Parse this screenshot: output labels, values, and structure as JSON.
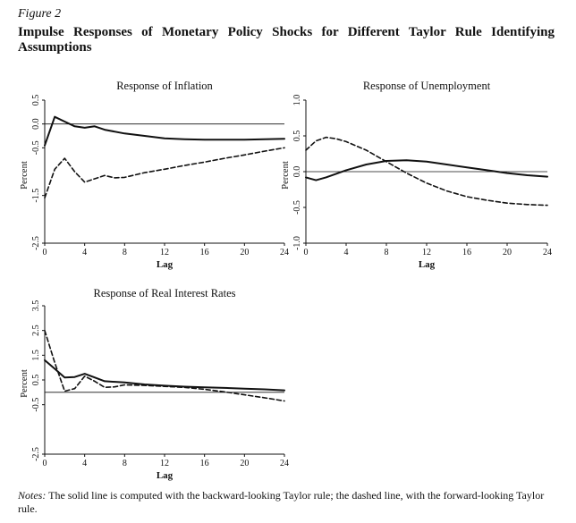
{
  "figure": {
    "label": "Figure 2",
    "title": "Impulse Responses of Monetary Policy Shocks for Different Taylor Rule Identifying Assumptions"
  },
  "notes": {
    "lead": "Notes:",
    "text": " The solid line is computed with the backward-looking Taylor rule; the dashed line, with the forward-looking Taylor rule."
  },
  "legend": {
    "solid": "backward-looking Taylor rule",
    "dashed": "forward-looking Taylor rule"
  },
  "chart_data": [
    {
      "type": "line",
      "title": "Response of Inflation",
      "xlabel": "Lag",
      "ylabel": "Percent",
      "xlim": [
        0,
        24
      ],
      "ylim": [
        -2.5,
        0.5
      ],
      "xticks": [
        "0",
        "4",
        "8",
        "12",
        "16",
        "20",
        "24"
      ],
      "yticks": [
        "-2.5",
        "-1.5",
        "-0.5",
        "0.0",
        "0.5"
      ],
      "zero_line": true,
      "series": [
        {
          "name": "backward-looking Taylor rule",
          "style": "solid",
          "x": [
            0,
            1,
            2,
            3,
            4,
            5,
            6,
            8,
            10,
            12,
            14,
            16,
            18,
            20,
            22,
            24
          ],
          "values": [
            -0.45,
            0.15,
            0.05,
            -0.05,
            -0.08,
            -0.05,
            -0.12,
            -0.2,
            -0.25,
            -0.3,
            -0.32,
            -0.33,
            -0.33,
            -0.33,
            -0.32,
            -0.31
          ]
        },
        {
          "name": "forward-looking Taylor rule",
          "style": "dashed",
          "x": [
            0,
            1,
            2,
            3,
            4,
            5,
            6,
            7,
            8,
            10,
            12,
            14,
            16,
            18,
            20,
            22,
            24
          ],
          "values": [
            -1.55,
            -0.95,
            -0.72,
            -1.0,
            -1.22,
            -1.15,
            -1.08,
            -1.13,
            -1.12,
            -1.02,
            -0.95,
            -0.87,
            -0.8,
            -0.72,
            -0.65,
            -0.57,
            -0.5
          ]
        }
      ]
    },
    {
      "type": "line",
      "title": "Response of Unemployment",
      "xlabel": "Lag",
      "ylabel": "Percent",
      "xlim": [
        0,
        24
      ],
      "ylim": [
        -1.0,
        1.0
      ],
      "xticks": [
        "0",
        "4",
        "8",
        "12",
        "16",
        "20",
        "24"
      ],
      "yticks": [
        "-1.0",
        "-0.5",
        "0.0",
        "0.5",
        "1.0"
      ],
      "zero_line": true,
      "series": [
        {
          "name": "backward-looking Taylor rule",
          "style": "solid",
          "x": [
            0,
            1,
            2,
            3,
            4,
            6,
            8,
            10,
            12,
            14,
            16,
            18,
            20,
            22,
            24
          ],
          "values": [
            -0.08,
            -0.12,
            -0.08,
            -0.03,
            0.02,
            0.1,
            0.15,
            0.16,
            0.14,
            0.1,
            0.06,
            0.02,
            -0.02,
            -0.05,
            -0.07
          ]
        },
        {
          "name": "forward-looking Taylor rule",
          "style": "dashed",
          "x": [
            0,
            1,
            2,
            3,
            4,
            6,
            8,
            10,
            12,
            14,
            16,
            18,
            20,
            22,
            24
          ],
          "values": [
            0.3,
            0.43,
            0.48,
            0.46,
            0.42,
            0.3,
            0.14,
            -0.02,
            -0.16,
            -0.27,
            -0.35,
            -0.4,
            -0.44,
            -0.46,
            -0.47
          ]
        }
      ]
    },
    {
      "type": "line",
      "title": "Response of Real Interest Rates",
      "xlabel": "Lag",
      "ylabel": "Percent",
      "xlim": [
        0,
        24
      ],
      "ylim": [
        -2.5,
        3.5
      ],
      "xticks": [
        "0",
        "4",
        "8",
        "12",
        "16",
        "20",
        "24"
      ],
      "yticks": [
        "-2.5",
        "-0.5",
        "0.5",
        "1.5",
        "2.5",
        "3.5"
      ],
      "zero_line": true,
      "series": [
        {
          "name": "backward-looking Taylor rule",
          "style": "solid",
          "x": [
            0,
            1,
            2,
            3,
            4,
            5,
            6,
            8,
            10,
            12,
            14,
            16,
            18,
            20,
            22,
            24
          ],
          "values": [
            1.3,
            0.95,
            0.6,
            0.62,
            0.75,
            0.6,
            0.45,
            0.4,
            0.32,
            0.27,
            0.23,
            0.2,
            0.18,
            0.15,
            0.12,
            0.08
          ]
        },
        {
          "name": "forward-looking Taylor rule",
          "style": "dashed",
          "x": [
            0,
            1,
            2,
            3,
            4,
            5,
            6,
            7,
            8,
            10,
            12,
            14,
            16,
            18,
            20,
            22,
            24
          ],
          "values": [
            2.5,
            1.2,
            0.05,
            0.15,
            0.65,
            0.45,
            0.2,
            0.22,
            0.3,
            0.28,
            0.24,
            0.2,
            0.12,
            0.02,
            -0.1,
            -0.22,
            -0.35
          ]
        }
      ]
    }
  ]
}
